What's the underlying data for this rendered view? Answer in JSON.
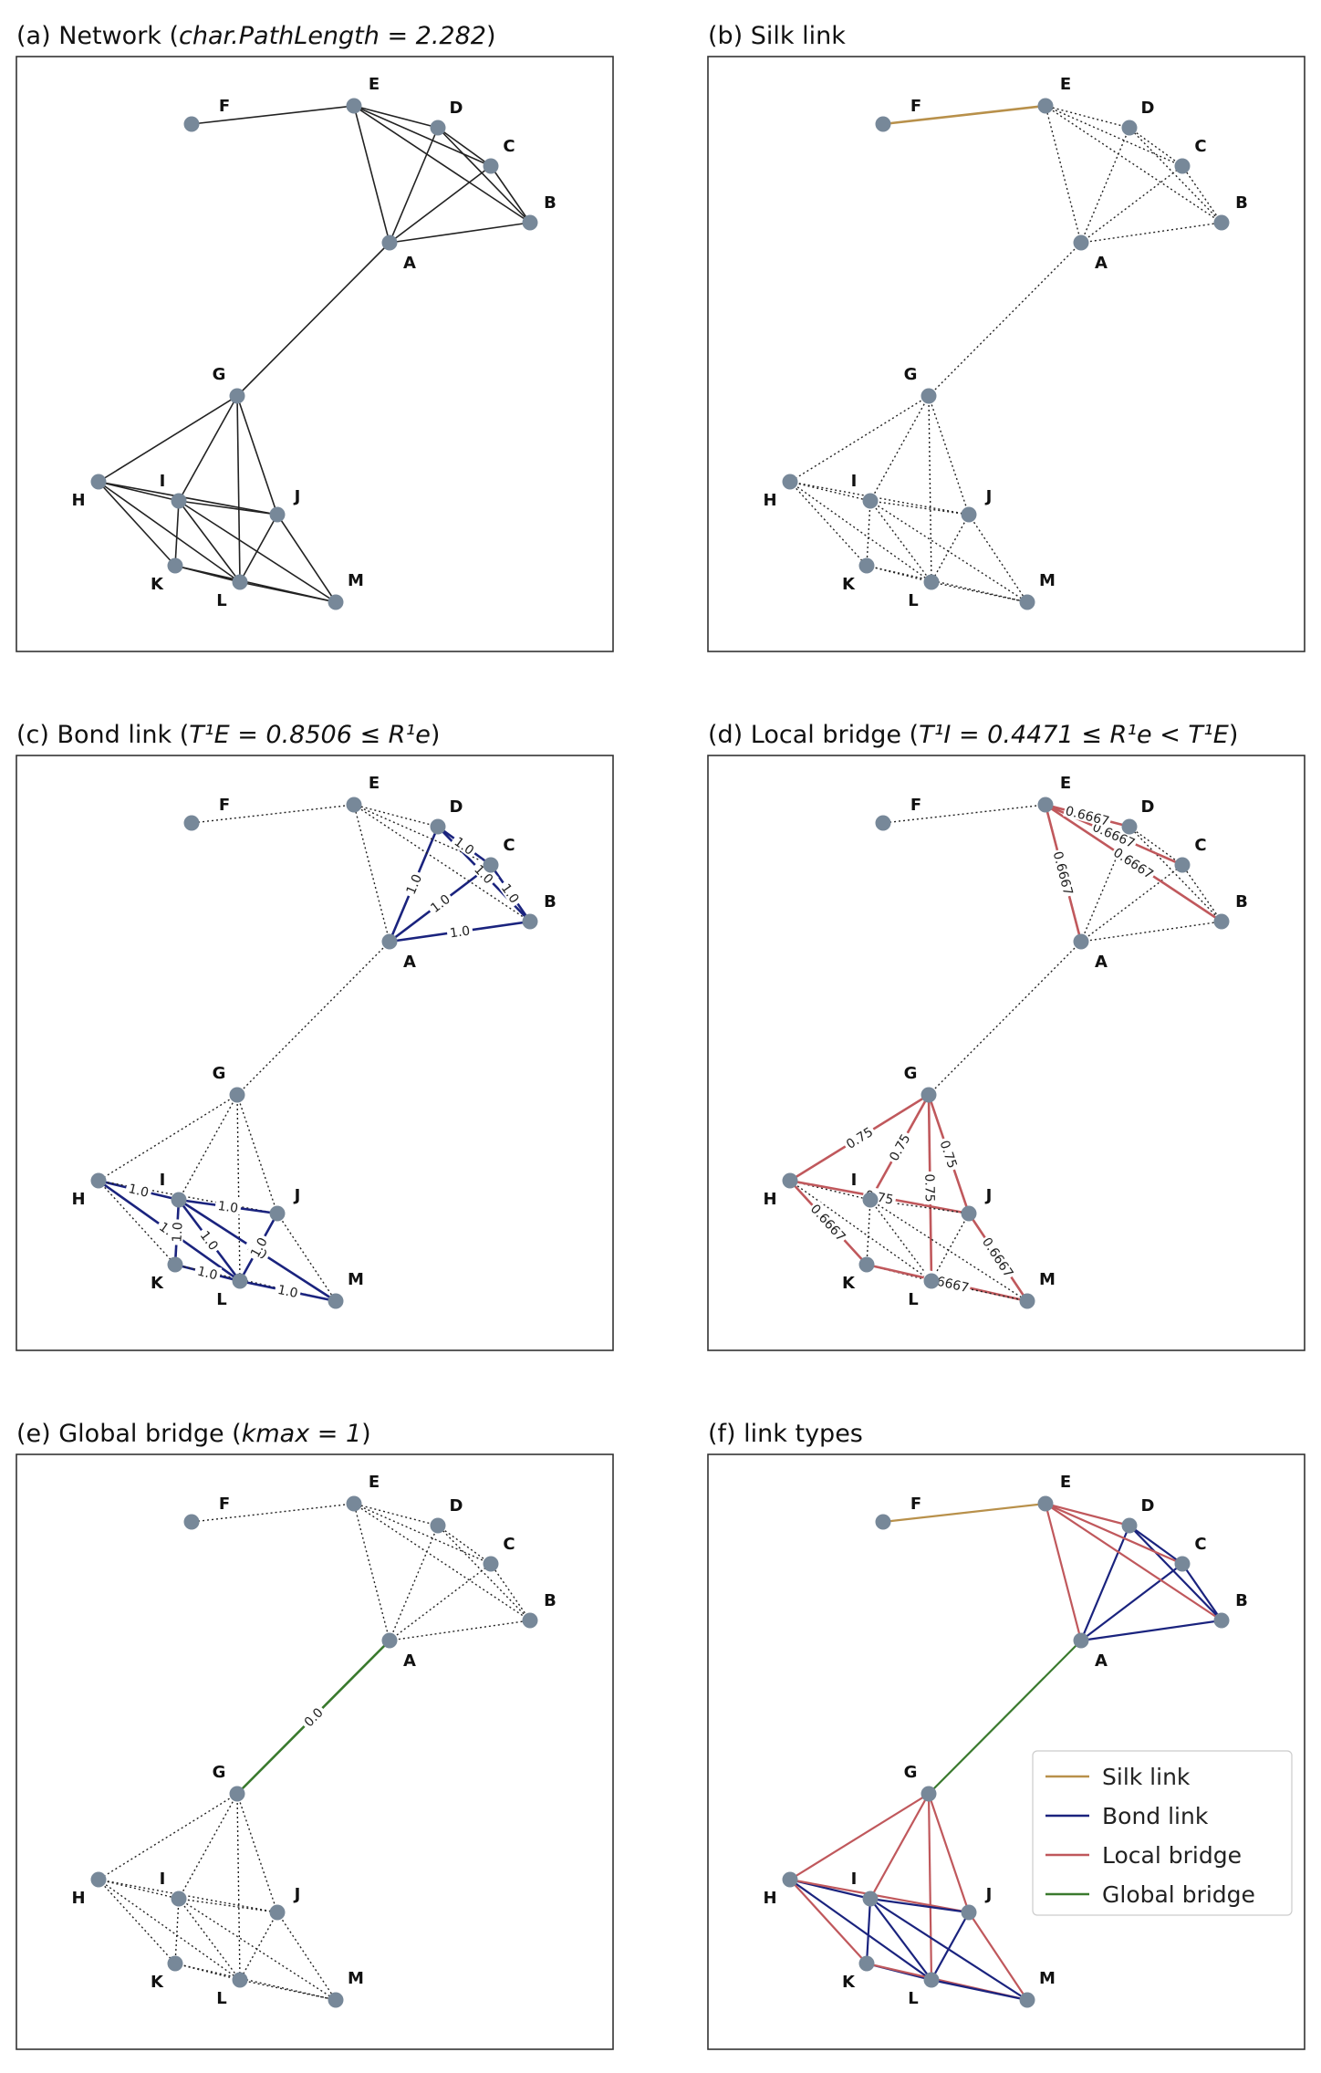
{
  "colors": {
    "node": "#778899",
    "plain_edge": "#222222",
    "silk": "#b8904a",
    "bond": "#1a237e",
    "local": "#c0585c",
    "global": "#3a7a2e",
    "frame": "#333333"
  },
  "nodes": [
    "A",
    "B",
    "C",
    "D",
    "E",
    "F",
    "G",
    "H",
    "I",
    "J",
    "K",
    "L",
    "M"
  ],
  "edges": [
    {
      "s": "E",
      "t": "F",
      "type": "silk"
    },
    {
      "s": "A",
      "t": "G",
      "type": "global",
      "label": "0.0"
    },
    {
      "s": "A",
      "t": "B",
      "type": "bond",
      "label": "1.0"
    },
    {
      "s": "A",
      "t": "C",
      "type": "bond",
      "label": "1.0"
    },
    {
      "s": "A",
      "t": "D",
      "type": "bond",
      "label": "1.0"
    },
    {
      "s": "B",
      "t": "C",
      "type": "bond",
      "label": "1.0"
    },
    {
      "s": "B",
      "t": "D",
      "type": "bond",
      "label": "1.0"
    },
    {
      "s": "C",
      "t": "D",
      "type": "bond",
      "label": "1.0"
    },
    {
      "s": "A",
      "t": "E",
      "type": "local",
      "label": "0.6667"
    },
    {
      "s": "B",
      "t": "E",
      "type": "local",
      "label": "0.6667"
    },
    {
      "s": "C",
      "t": "E",
      "type": "local",
      "label": "0.6667"
    },
    {
      "s": "D",
      "t": "E",
      "type": "local",
      "label": "0.6667"
    },
    {
      "s": "G",
      "t": "H",
      "type": "local",
      "label": "0.75"
    },
    {
      "s": "G",
      "t": "I",
      "type": "local",
      "label": "0.75"
    },
    {
      "s": "G",
      "t": "J",
      "type": "local",
      "label": "0.75"
    },
    {
      "s": "G",
      "t": "L",
      "type": "local",
      "label": "0.75"
    },
    {
      "s": "H",
      "t": "I",
      "type": "bond",
      "label": "1.0"
    },
    {
      "s": "H",
      "t": "L",
      "type": "bond",
      "label": "1.0"
    },
    {
      "s": "H",
      "t": "K",
      "type": "local",
      "label": "0.6667"
    },
    {
      "s": "H",
      "t": "J",
      "type": "local",
      "label": "0.75"
    },
    {
      "s": "I",
      "t": "J",
      "type": "bond",
      "label": "1.0"
    },
    {
      "s": "I",
      "t": "K",
      "type": "bond",
      "label": "1.0"
    },
    {
      "s": "I",
      "t": "L",
      "type": "bond",
      "label": "1.0"
    },
    {
      "s": "I",
      "t": "M",
      "type": "bond",
      "label": "1.0"
    },
    {
      "s": "J",
      "t": "L",
      "type": "bond",
      "label": "1.0"
    },
    {
      "s": "J",
      "t": "M",
      "type": "local",
      "label": "0.6667"
    },
    {
      "s": "K",
      "t": "L",
      "type": "bond",
      "label": "1.0"
    },
    {
      "s": "K",
      "t": "M",
      "type": "local",
      "label": "0.6667"
    },
    {
      "s": "L",
      "t": "M",
      "type": "bond",
      "label": "1.0"
    }
  ],
  "panels": [
    {
      "id": "a",
      "title": "(a) Network (",
      "math": "char.PathLength = 2.282",
      "close": ")",
      "mode": "all-solid"
    },
    {
      "id": "b",
      "title": "(b) Silk link",
      "math": "",
      "close": "",
      "mode": "highlight",
      "highlight": "silk",
      "labels": false
    },
    {
      "id": "c",
      "title": "(c) Bond link (",
      "math": "T¹E = 0.8506 ≤ R¹e",
      "close": ")",
      "mode": "highlight",
      "highlight": "bond",
      "labels": true
    },
    {
      "id": "d",
      "title": "(d) Local bridge (",
      "math": "T¹I = 0.4471 ≤ R¹e < T¹E",
      "close": ")",
      "mode": "highlight",
      "highlight": "local",
      "labels": true
    },
    {
      "id": "e",
      "title": "(e) Global bridge (",
      "math": "kmax = 1",
      "close": ")",
      "mode": "highlight",
      "highlight": "global",
      "labels": true
    },
    {
      "id": "f",
      "title": "(f) link types",
      "math": "",
      "close": "",
      "mode": "all-colored"
    }
  ],
  "legend": [
    {
      "key": "silk",
      "label": "Silk link"
    },
    {
      "key": "bond",
      "label": "Bond link"
    },
    {
      "key": "local",
      "label": "Local bridge"
    },
    {
      "key": "global",
      "label": "Global bridge"
    }
  ]
}
